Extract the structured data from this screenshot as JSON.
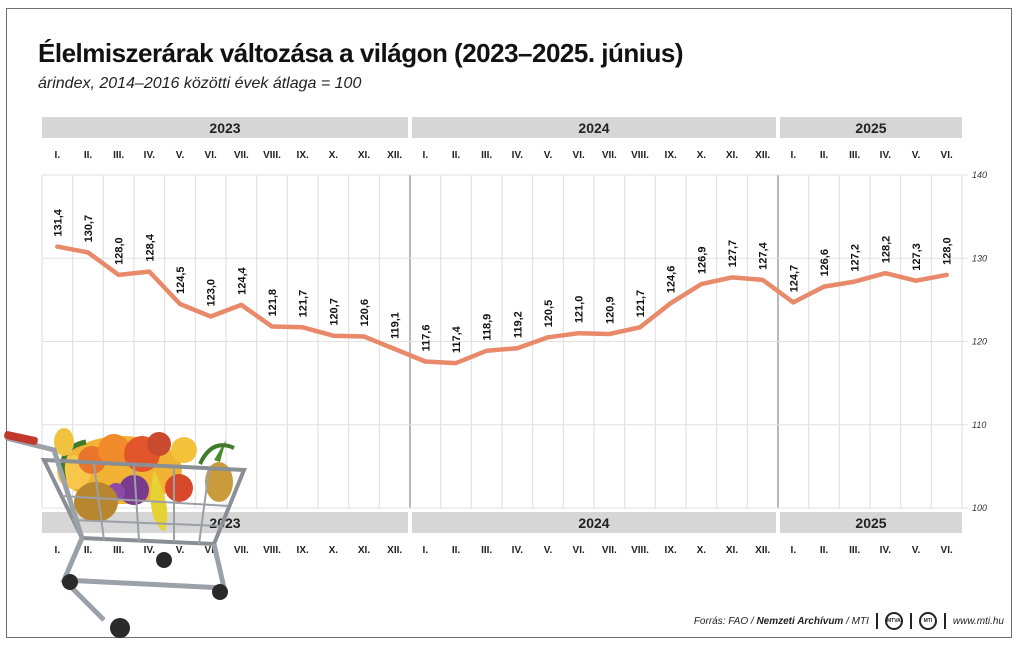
{
  "header": {
    "title": "Élelmiszerárak változása a világon (2023–2025. június)",
    "subtitle": "árindex, 2014–2016 közötti évek átlaga = 100"
  },
  "footer": {
    "source_prefix": "Forrás: FAO / ",
    "source_bold": "Nemzeti Archívum",
    "source_suffix": " / MTI",
    "website": "www.mti.hu",
    "logo1_text": "MTVA",
    "logo2_text": "MTI"
  },
  "chart_data": {
    "type": "line",
    "years": [
      {
        "label": "2023",
        "months": 12
      },
      {
        "label": "2024",
        "months": 12
      },
      {
        "label": "2025",
        "months": 6
      }
    ],
    "categories": [
      "I.",
      "II.",
      "III.",
      "IV.",
      "V.",
      "VI.",
      "VII.",
      "VIII.",
      "IX.",
      "X.",
      "XI.",
      "XII.",
      "I.",
      "II.",
      "III.",
      "IV.",
      "V.",
      "VI.",
      "VII.",
      "VIII.",
      "IX.",
      "X.",
      "XI.",
      "XII.",
      "I.",
      "II.",
      "III.",
      "IV.",
      "V.",
      "VI."
    ],
    "values": [
      131.4,
      130.7,
      128.0,
      128.4,
      124.5,
      123.0,
      124.4,
      121.8,
      121.7,
      120.7,
      120.6,
      119.1,
      117.6,
      117.4,
      118.9,
      119.2,
      120.5,
      121.0,
      120.9,
      121.7,
      124.6,
      126.9,
      127.7,
      127.4,
      124.7,
      126.6,
      127.2,
      128.2,
      127.3,
      128.0
    ],
    "value_labels": [
      "131,4",
      "130,7",
      "128,0",
      "128,4",
      "124,5",
      "123,0",
      "124,4",
      "121,8",
      "121,7",
      "120,7",
      "120,6",
      "119,1",
      "117,6",
      "117,4",
      "118,9",
      "119,2",
      "120,5",
      "121,0",
      "120,9",
      "121,7",
      "124,6",
      "126,9",
      "127,7",
      "127,4",
      "124,7",
      "126,6",
      "127,2",
      "128,2",
      "127,3",
      "128,0"
    ],
    "ylim": [
      100,
      140
    ],
    "yticks": [
      100,
      110,
      120,
      130,
      140
    ],
    "grid": true,
    "line_color": "#e8896a",
    "band_color": "#d6d6d6"
  }
}
